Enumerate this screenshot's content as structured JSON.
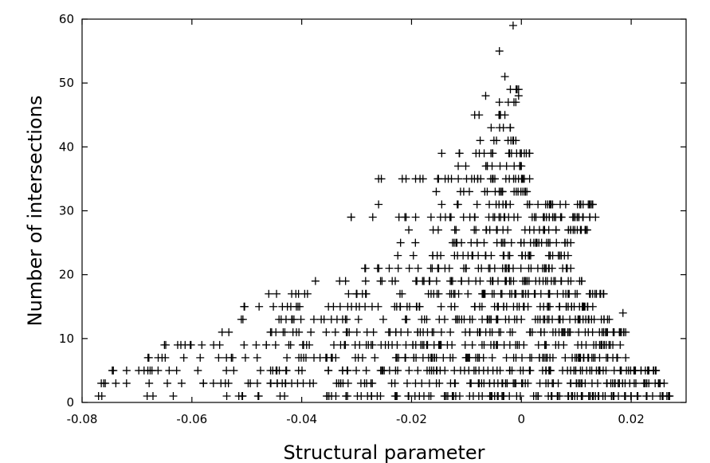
{
  "chart_data": {
    "type": "scatter",
    "title": "",
    "xlabel": "Structural parameter",
    "ylabel": "Number of intersections",
    "xlim": [
      -0.08,
      0.03
    ],
    "ylim": [
      0,
      60
    ],
    "x_ticks": [
      "-0.08",
      "-0.06",
      "-0.04",
      "-0.02",
      "0",
      "0.02"
    ],
    "y_ticks": [
      "0",
      "10",
      "20",
      "30",
      "40",
      "50",
      "60"
    ],
    "marker": "plus",
    "grid": false,
    "legend": "none",
    "color": "#000000",
    "rows": [
      {
        "y": 1,
        "xmin": -0.077,
        "xmax": 0.027
      },
      {
        "y": 3,
        "xmin": -0.0765,
        "xmax": 0.026
      },
      {
        "y": 5,
        "xmin": -0.0745,
        "xmax": 0.0245
      },
      {
        "y": 7,
        "xmin": -0.068,
        "xmax": 0.019
      },
      {
        "y": 9,
        "xmin": -0.065,
        "xmax": 0.018
      },
      {
        "y": 11,
        "xmin": -0.0545,
        "xmax": 0.019
      },
      {
        "y": 13,
        "xmin": -0.051,
        "xmax": 0.016
      },
      {
        "y": 15,
        "xmin": -0.0505,
        "xmax": 0.013
      },
      {
        "y": 17,
        "xmin": -0.046,
        "xmax": 0.015
      },
      {
        "y": 19,
        "xmin": -0.0375,
        "xmax": 0.011
      },
      {
        "y": 21,
        "xmin": -0.0285,
        "xmax": 0.009
      },
      {
        "y": 23,
        "xmin": -0.0225,
        "xmax": 0.0085
      },
      {
        "y": 25,
        "xmin": -0.022,
        "xmax": 0.009
      },
      {
        "y": 27,
        "xmin": -0.0205,
        "xmax": 0.012
      },
      {
        "y": 29,
        "xmin": -0.031,
        "xmax": 0.0135
      },
      {
        "y": 31,
        "xmin": -0.0145,
        "xmax": 0.013
      },
      {
        "y": 33,
        "xmin": -0.0155,
        "xmax": 0.001
      },
      {
        "y": 35,
        "xmin": -0.0255,
        "xmax": 0.0015
      },
      {
        "y": 37,
        "xmin": -0.0115,
        "xmax": 0.0
      },
      {
        "y": 39,
        "xmin": -0.0145,
        "xmax": 0.0015
      },
      {
        "y": 41,
        "xmin": -0.0075,
        "xmax": -0.001
      },
      {
        "y": 43,
        "xmin": -0.0055,
        "xmax": -0.002
      },
      {
        "y": 45,
        "xmin": -0.0085,
        "xmax": -0.003
      },
      {
        "y": 47,
        "xmin": -0.004,
        "xmax": -0.001
      },
      {
        "y": 49,
        "xmin": -0.002,
        "xmax": -0.0005
      }
    ],
    "outliers": [
      {
        "x": -0.0015,
        "y": 59
      },
      {
        "x": -0.004,
        "y": 55
      },
      {
        "x": -0.003,
        "y": 51
      },
      {
        "x": -0.0065,
        "y": 48
      },
      {
        "x": -0.0005,
        "y": 48
      },
      {
        "x": -0.026,
        "y": 35
      },
      {
        "x": -0.021,
        "y": 35
      },
      {
        "x": -0.026,
        "y": 31
      },
      {
        "x": 0.013,
        "y": 31
      },
      {
        "x": -0.021,
        "y": 29
      },
      {
        "x": -0.031,
        "y": 29
      },
      {
        "x": -0.033,
        "y": 15
      },
      {
        "x": 0.0185,
        "y": 14
      },
      {
        "x": 0.0245,
        "y": 5
      },
      {
        "x": 0.0265,
        "y": 1
      }
    ]
  }
}
